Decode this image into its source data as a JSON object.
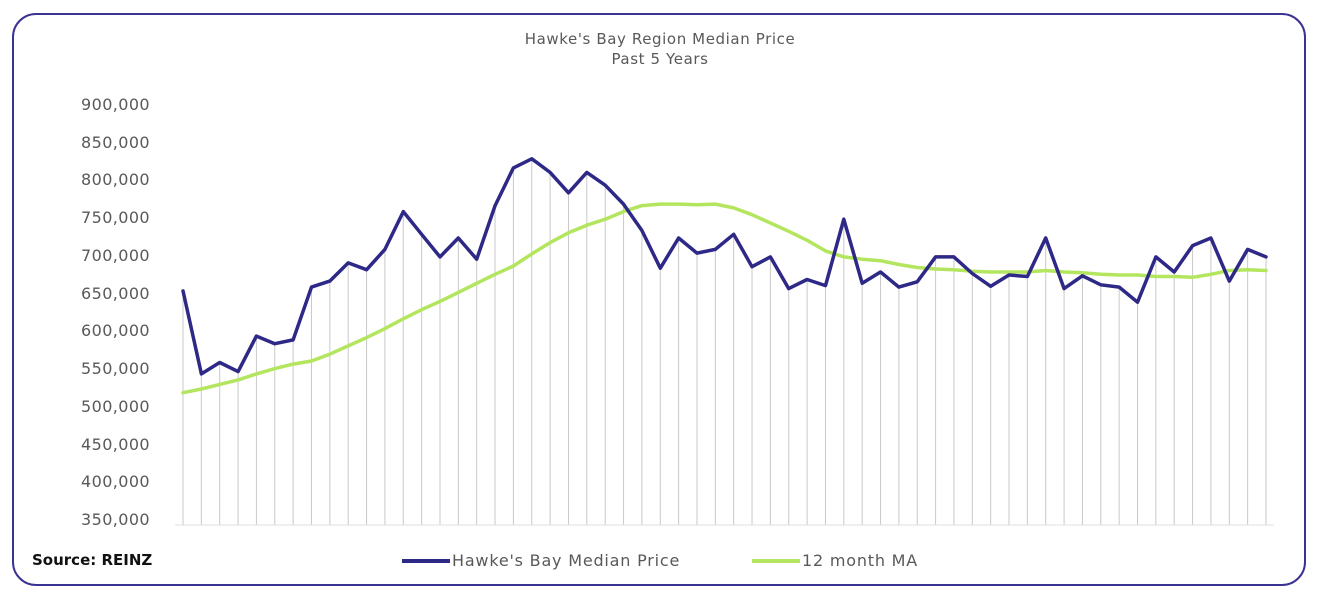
{
  "chart_data": {
    "type": "line",
    "title": "Hawke's Bay Region Median Price",
    "subtitle": "Past 5 Years",
    "ylim": [
      350000,
      900000
    ],
    "y_ticks": [
      "900,000",
      "850,000",
      "800,000",
      "750,000",
      "700,000",
      "650,000",
      "600,000",
      "550,000",
      "500,000",
      "450,000",
      "400,000",
      "350,000"
    ],
    "y_tick_values": [
      900000,
      850000,
      800000,
      750000,
      700000,
      650000,
      600000,
      550000,
      500000,
      450000,
      400000,
      350000
    ],
    "grid": "vertical-lines-per-month",
    "legend_placement": "bottom",
    "series": [
      {
        "name": "Hawke's Bay Median Price",
        "color": "#2e2886",
        "values": [
          655000,
          545000,
          560000,
          548000,
          595000,
          585000,
          590000,
          660000,
          668000,
          692000,
          683000,
          710000,
          760000,
          730000,
          700000,
          725000,
          697000,
          768000,
          818000,
          830000,
          812000,
          785000,
          812000,
          795000,
          770000,
          735000,
          685000,
          725000,
          705000,
          710000,
          730000,
          687000,
          700000,
          658000,
          670000,
          662000,
          750000,
          665000,
          680000,
          660000,
          667000,
          700000,
          700000,
          678000,
          661000,
          676000,
          674000,
          725000,
          658000,
          675000,
          663000,
          660000,
          640000,
          700000,
          680000,
          715000,
          725000,
          668000,
          710000,
          700000
        ]
      },
      {
        "name": "12 month MA",
        "color": "#b3e65e",
        "values": [
          520000,
          525000,
          531000,
          537000,
          545000,
          552000,
          558000,
          562000,
          571000,
          582000,
          593000,
          605000,
          618000,
          630000,
          641000,
          653000,
          665000,
          677000,
          688000,
          704000,
          719000,
          732000,
          742000,
          750000,
          760000,
          768000,
          770000,
          770000,
          769000,
          770000,
          765000,
          756000,
          745000,
          734000,
          722000,
          708000,
          700000,
          697000,
          695000,
          690000,
          686000,
          684000,
          683000,
          681000,
          680000,
          680000,
          680000,
          682000,
          680000,
          679000,
          677000,
          676000,
          676000,
          674000,
          674000,
          673000,
          677000,
          682000,
          683000,
          682000
        ]
      }
    ]
  },
  "source_label": "Source: REINZ"
}
